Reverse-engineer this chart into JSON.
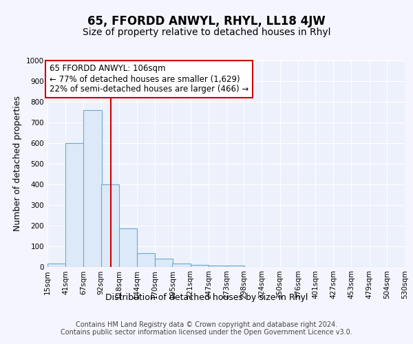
{
  "title": "65, FFORDD ANWYL, RHYL, LL18 4JW",
  "subtitle": "Size of property relative to detached houses in Rhyl",
  "xlabel": "Distribution of detached houses by size in Rhyl",
  "ylabel": "Number of detached properties",
  "bin_edges": [
    15,
    41,
    67,
    92,
    118,
    144,
    170,
    195,
    221,
    247,
    273,
    298,
    324,
    350,
    376,
    401,
    427,
    453,
    479,
    504,
    530
  ],
  "bar_heights": [
    15,
    600,
    760,
    400,
    185,
    65,
    40,
    15,
    10,
    5,
    5,
    0,
    0,
    0,
    0,
    0,
    0,
    0,
    0,
    0
  ],
  "bar_color": "#dce9f8",
  "bar_edge_color": "#6aaad4",
  "red_line_x": 106,
  "annotation_text": "65 FFORDD ANWYL: 106sqm\n← 77% of detached houses are smaller (1,629)\n22% of semi-detached houses are larger (466) →",
  "annotation_box_color": "#ffffff",
  "annotation_box_edge": "#cc0000",
  "red_line_color": "#cc0000",
  "ylim": [
    0,
    1000
  ],
  "yticks": [
    0,
    100,
    200,
    300,
    400,
    500,
    600,
    700,
    800,
    900,
    1000
  ],
  "background_color": "#edf1fb",
  "grid_color": "#ffffff",
  "footer_text": "Contains HM Land Registry data © Crown copyright and database right 2024.\nContains public sector information licensed under the Open Government Licence v3.0.",
  "title_fontsize": 12,
  "subtitle_fontsize": 10,
  "axis_label_fontsize": 9,
  "tick_fontsize": 7.5,
  "annotation_fontsize": 8.5,
  "footer_fontsize": 7
}
